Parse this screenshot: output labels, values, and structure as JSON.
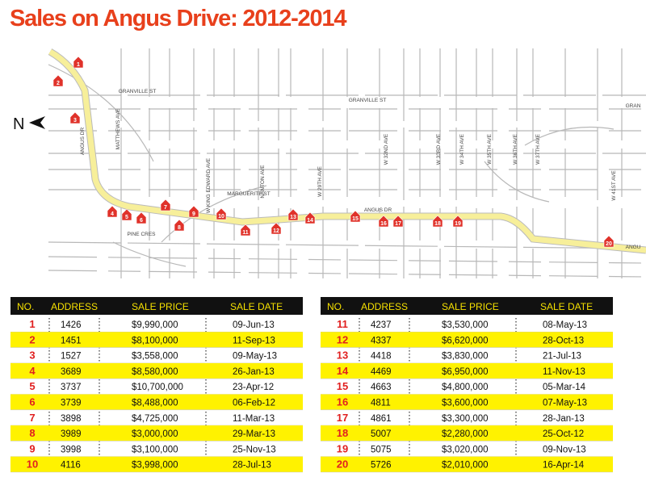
{
  "title": "Sales on Angus Drive: 2012-2014",
  "map": {
    "north": "N",
    "street_labels": [
      "GRANVILLE ST",
      "GRANVILLE ST",
      "GRAN",
      "MATTHEWS AVE",
      "ANGUS DR",
      "W KING EDWARD AVE",
      "NANTON AVE",
      "MARGUERITE ST",
      "W 29TH AVE",
      "ANGUS DR",
      "W 32ND AVE",
      "W 33RD AVE",
      "W 34TH AVE",
      "W 35TH AVE",
      "W 36TH AVE",
      "W 37TH AVE",
      "PINE CRES",
      "W 41ST AVE",
      "ANGU"
    ]
  },
  "table": {
    "headers": [
      "NO.",
      "ADDRESS",
      "SALE PRICE",
      "SALE DATE"
    ],
    "rows": [
      [
        "1",
        "1426",
        "$9,990,000",
        "09-Jun-13"
      ],
      [
        "2",
        "1451",
        "$8,100,000",
        "11-Sep-13"
      ],
      [
        "3",
        "1527",
        "$3,558,000",
        "09-May-13"
      ],
      [
        "4",
        "3689",
        "$8,580,000",
        "26-Jan-13"
      ],
      [
        "5",
        "3737",
        "$10,700,000",
        "23-Apr-12"
      ],
      [
        "6",
        "3739",
        "$8,488,000",
        "06-Feb-12"
      ],
      [
        "7",
        "3898",
        "$4,725,000",
        "11-Mar-13"
      ],
      [
        "8",
        "3989",
        "$3,000,000",
        "29-Mar-13"
      ],
      [
        "9",
        "3998",
        "$3,100,000",
        "25-Nov-13"
      ],
      [
        "10",
        "4116",
        "$3,998,000",
        "28-Jul-13"
      ],
      [
        "11",
        "4237",
        "$3,530,000",
        "08-May-13"
      ],
      [
        "12",
        "4337",
        "$6,620,000",
        "28-Oct-13"
      ],
      [
        "13",
        "4418",
        "$3,830,000",
        "21-Jul-13"
      ],
      [
        "14",
        "4469",
        "$6,950,000",
        "11-Nov-13"
      ],
      [
        "15",
        "4663",
        "$4,800,000",
        "05-Mar-14"
      ],
      [
        "16",
        "4811",
        "$3,600,000",
        "07-May-13"
      ],
      [
        "17",
        "4861",
        "$3,300,000",
        "28-Jan-13"
      ],
      [
        "18",
        "5007",
        "$2,280,000",
        "25-Oct-12"
      ],
      [
        "19",
        "5075",
        "$3,020,000",
        "09-Nov-13"
      ],
      [
        "20",
        "5726",
        "$2,010,000",
        "16-Apr-14"
      ]
    ]
  }
}
